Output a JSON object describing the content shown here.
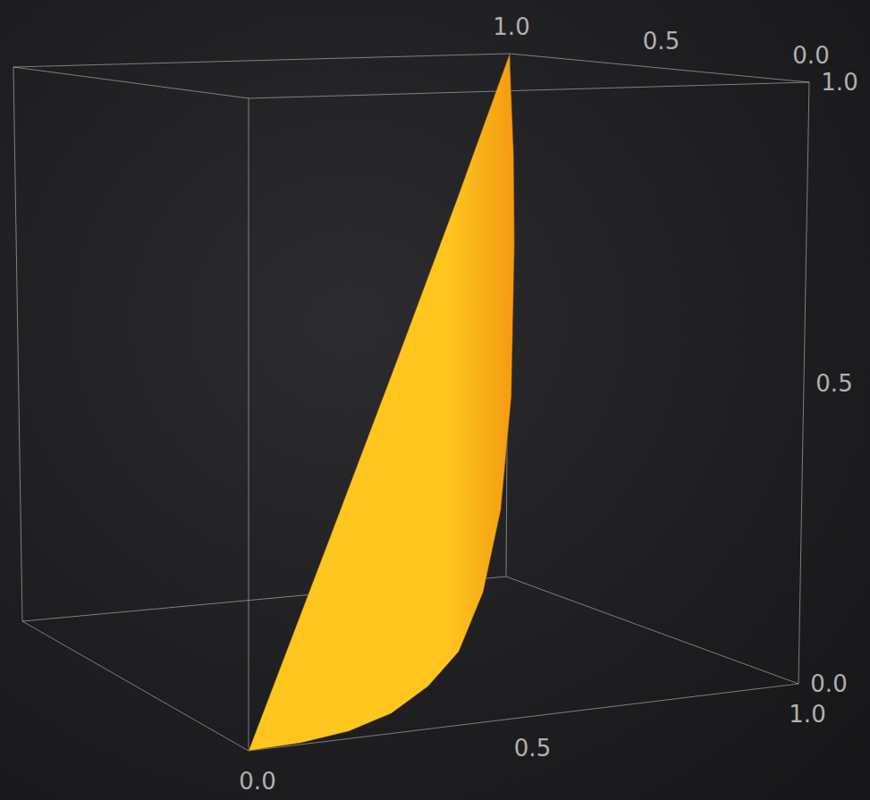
{
  "chart_data": {
    "type": "surface3d",
    "color": "#ffc61f",
    "xlim": [
      0,
      1
    ],
    "ylim": [
      0,
      1
    ],
    "zlim": [
      0,
      1
    ],
    "xticks": [
      {
        "value": 0,
        "label": "0.0"
      },
      {
        "value": 0.5,
        "label": "0.5"
      },
      {
        "value": 1,
        "label": "1.0"
      }
    ],
    "yticks": [
      {
        "value": 0,
        "label": "0.0"
      },
      {
        "value": 0.5,
        "label": "0.5"
      },
      {
        "value": 1,
        "label": "1.0"
      }
    ],
    "zticks": [
      {
        "value": 0,
        "label": "0.0"
      },
      {
        "value": 0.5,
        "label": "0.5"
      },
      {
        "value": 1,
        "label": "1.0"
      }
    ],
    "surface": {
      "x": [
        0,
        0.1,
        0.2,
        0.3,
        0.4,
        0.5,
        0.6,
        0.7,
        0.8,
        0.9,
        0.95,
        1,
        0.75,
        0.5,
        0.25
      ],
      "y": [
        0,
        0.01,
        0.04,
        0.09,
        0.16,
        0.25,
        0.36,
        0.49,
        0.64,
        0.81,
        0.9,
        1,
        0.75,
        0.5,
        0.25
      ],
      "z": [
        0,
        0,
        0.002,
        0.01,
        0.03,
        0.06,
        0.13,
        0.24,
        0.41,
        0.66,
        0.81,
        1,
        0.75,
        0.5,
        0.25
      ]
    }
  }
}
